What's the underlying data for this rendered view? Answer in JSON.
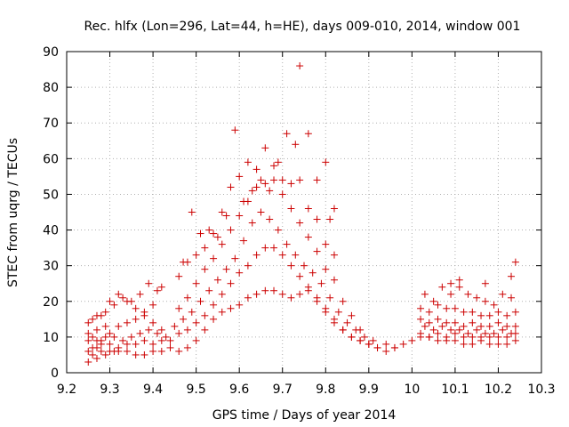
{
  "chart_data": {
    "type": "scatter",
    "title": "Rec. hlfx (Lon=296, Lat=44, h=HE), days 009-010, 2014, window 001",
    "xlabel": "GPS time / Days of year 2014",
    "ylabel": "STEC from uqrg / TECUs",
    "xlim": [
      9.2,
      10.3
    ],
    "ylim": [
      0,
      90
    ],
    "xticks": [
      "9.2",
      "9.3",
      "9.4",
      "9.5",
      "9.6",
      "9.7",
      "9.8",
      "9.9",
      "10",
      "10.1",
      "10.2",
      "10.3"
    ],
    "yticks": [
      "0",
      "10",
      "20",
      "30",
      "40",
      "50",
      "60",
      "70",
      "80",
      "90"
    ],
    "grid": true,
    "marker": "+",
    "color": "#cc0000",
    "series": [
      {
        "name": "STEC",
        "points": [
          [
            9.25,
            3
          ],
          [
            9.26,
            5
          ],
          [
            9.27,
            4
          ],
          [
            9.28,
            6
          ],
          [
            9.29,
            5
          ],
          [
            9.3,
            6
          ],
          [
            9.31,
            6
          ],
          [
            9.32,
            6
          ],
          [
            9.34,
            6
          ],
          [
            9.36,
            5
          ],
          [
            9.38,
            5
          ],
          [
            9.4,
            6
          ],
          [
            9.42,
            6
          ],
          [
            9.44,
            7
          ],
          [
            9.46,
            6
          ],
          [
            9.48,
            7
          ],
          [
            9.5,
            9
          ],
          [
            9.52,
            12
          ],
          [
            9.54,
            15
          ],
          [
            9.56,
            17
          ],
          [
            9.58,
            18
          ],
          [
            9.6,
            19
          ],
          [
            9.62,
            21
          ],
          [
            9.64,
            22
          ],
          [
            9.66,
            23
          ],
          [
            9.68,
            23
          ],
          [
            9.7,
            22
          ],
          [
            9.72,
            21
          ],
          [
            9.74,
            22
          ],
          [
            9.76,
            23
          ],
          [
            9.78,
            20
          ],
          [
            9.8,
            17
          ],
          [
            9.82,
            15
          ],
          [
            9.84,
            12
          ],
          [
            9.86,
            10
          ],
          [
            9.88,
            9
          ],
          [
            9.9,
            8
          ],
          [
            9.92,
            7
          ],
          [
            9.94,
            6
          ],
          [
            9.96,
            7
          ],
          [
            9.98,
            8
          ],
          [
            10.0,
            9
          ],
          [
            10.02,
            10
          ],
          [
            10.04,
            10
          ],
          [
            10.06,
            9
          ],
          [
            10.08,
            9
          ],
          [
            10.1,
            9
          ],
          [
            10.12,
            8
          ],
          [
            10.14,
            8
          ],
          [
            10.16,
            9
          ],
          [
            10.18,
            8
          ],
          [
            10.2,
            8
          ],
          [
            10.22,
            8
          ],
          [
            10.24,
            9
          ],
          [
            9.25,
            6
          ],
          [
            9.26,
            7
          ],
          [
            9.27,
            7
          ],
          [
            9.28,
            8
          ],
          [
            9.3,
            8
          ],
          [
            9.32,
            7
          ],
          [
            9.34,
            8
          ],
          [
            9.36,
            8
          ],
          [
            9.38,
            9
          ],
          [
            9.4,
            8
          ],
          [
            9.42,
            9
          ],
          [
            9.44,
            9
          ],
          [
            9.46,
            11
          ],
          [
            9.48,
            12
          ],
          [
            9.5,
            14
          ],
          [
            9.52,
            16
          ],
          [
            9.54,
            19
          ],
          [
            9.56,
            22
          ],
          [
            9.58,
            25
          ],
          [
            9.6,
            28
          ],
          [
            9.62,
            30
          ],
          [
            9.64,
            33
          ],
          [
            9.66,
            35
          ],
          [
            9.68,
            35
          ],
          [
            9.7,
            33
          ],
          [
            9.72,
            30
          ],
          [
            9.74,
            27
          ],
          [
            9.76,
            24
          ],
          [
            9.78,
            21
          ],
          [
            9.8,
            18
          ],
          [
            9.82,
            14
          ],
          [
            9.84,
            12
          ],
          [
            9.86,
            10
          ],
          [
            9.88,
            9
          ],
          [
            9.9,
            8
          ],
          [
            9.92,
            7
          ],
          [
            9.94,
            8
          ],
          [
            9.96,
            7
          ],
          [
            10.02,
            11
          ],
          [
            10.04,
            10
          ],
          [
            10.06,
            11
          ],
          [
            10.08,
            10
          ],
          [
            10.1,
            11
          ],
          [
            10.12,
            10
          ],
          [
            10.14,
            10
          ],
          [
            10.16,
            10
          ],
          [
            10.18,
            10
          ],
          [
            10.2,
            10
          ],
          [
            10.22,
            10
          ],
          [
            10.24,
            11
          ],
          [
            9.25,
            9
          ],
          [
            9.26,
            10
          ],
          [
            9.27,
            9
          ],
          [
            9.28,
            9
          ],
          [
            9.29,
            10
          ],
          [
            9.31,
            10
          ],
          [
            9.33,
            9
          ],
          [
            9.35,
            10
          ],
          [
            9.37,
            11
          ],
          [
            9.39,
            12
          ],
          [
            9.41,
            11
          ],
          [
            9.43,
            10
          ],
          [
            9.45,
            13
          ],
          [
            9.47,
            15
          ],
          [
            9.49,
            17
          ],
          [
            9.51,
            20
          ],
          [
            9.53,
            23
          ],
          [
            9.55,
            26
          ],
          [
            9.57,
            29
          ],
          [
            9.59,
            32
          ],
          [
            9.61,
            37
          ],
          [
            9.63,
            42
          ],
          [
            9.65,
            45
          ],
          [
            9.67,
            43
          ],
          [
            9.69,
            40
          ],
          [
            9.71,
            36
          ],
          [
            9.73,
            33
          ],
          [
            9.75,
            30
          ],
          [
            9.77,
            28
          ],
          [
            9.79,
            25
          ],
          [
            9.81,
            21
          ],
          [
            9.83,
            17
          ],
          [
            9.85,
            14
          ],
          [
            9.87,
            12
          ],
          [
            9.89,
            10
          ],
          [
            9.91,
            9
          ],
          [
            10.03,
            13
          ],
          [
            10.05,
            12
          ],
          [
            10.07,
            13
          ],
          [
            10.09,
            12
          ],
          [
            10.11,
            12
          ],
          [
            10.13,
            11
          ],
          [
            10.15,
            12
          ],
          [
            10.17,
            11
          ],
          [
            10.19,
            11
          ],
          [
            10.21,
            12
          ],
          [
            10.23,
            11
          ],
          [
            9.25,
            11
          ],
          [
            9.27,
            12
          ],
          [
            9.29,
            13
          ],
          [
            9.3,
            11
          ],
          [
            9.32,
            13
          ],
          [
            9.34,
            14
          ],
          [
            9.36,
            15
          ],
          [
            9.38,
            16
          ],
          [
            9.4,
            14
          ],
          [
            9.42,
            12
          ],
          [
            9.46,
            18
          ],
          [
            9.48,
            21
          ],
          [
            9.5,
            25
          ],
          [
            9.52,
            29
          ],
          [
            9.54,
            32
          ],
          [
            9.56,
            36
          ],
          [
            9.58,
            40
          ],
          [
            9.6,
            44
          ],
          [
            9.62,
            48
          ],
          [
            9.64,
            52
          ],
          [
            9.66,
            53
          ],
          [
            9.68,
            54
          ],
          [
            9.7,
            50
          ],
          [
            9.72,
            46
          ],
          [
            9.74,
            42
          ],
          [
            9.76,
            38
          ],
          [
            9.78,
            34
          ],
          [
            9.8,
            29
          ],
          [
            9.82,
            26
          ],
          [
            9.84,
            20
          ],
          [
            9.86,
            16
          ],
          [
            9.88,
            12
          ],
          [
            10.02,
            15
          ],
          [
            10.04,
            14
          ],
          [
            10.06,
            15
          ],
          [
            10.08,
            14
          ],
          [
            10.1,
            14
          ],
          [
            10.12,
            13
          ],
          [
            10.14,
            14
          ],
          [
            10.16,
            13
          ],
          [
            10.18,
            13
          ],
          [
            10.2,
            14
          ],
          [
            10.22,
            13
          ],
          [
            10.24,
            13
          ],
          [
            9.25,
            14
          ],
          [
            9.27,
            16
          ],
          [
            9.29,
            17
          ],
          [
            9.31,
            19
          ],
          [
            9.33,
            21
          ],
          [
            9.35,
            20
          ],
          [
            9.37,
            22
          ],
          [
            9.39,
            25
          ],
          [
            9.41,
            23
          ],
          [
            9.46,
            27
          ],
          [
            9.48,
            31
          ],
          [
            9.5,
            33
          ],
          [
            9.52,
            35
          ],
          [
            9.54,
            39
          ],
          [
            9.56,
            45
          ],
          [
            9.58,
            52
          ],
          [
            9.6,
            55
          ],
          [
            9.62,
            59
          ],
          [
            9.64,
            57
          ],
          [
            9.66,
            63
          ],
          [
            9.68,
            58
          ],
          [
            9.7,
            54
          ],
          [
            9.72,
            53
          ],
          [
            9.74,
            54
          ],
          [
            9.76,
            46
          ],
          [
            9.78,
            43
          ],
          [
            9.8,
            36
          ],
          [
            9.82,
            33
          ],
          [
            10.02,
            18
          ],
          [
            10.04,
            17
          ],
          [
            10.06,
            19
          ],
          [
            10.08,
            18
          ],
          [
            10.1,
            18
          ],
          [
            10.12,
            17
          ],
          [
            10.14,
            17
          ],
          [
            10.16,
            16
          ],
          [
            10.18,
            16
          ],
          [
            10.2,
            17
          ],
          [
            10.22,
            16
          ],
          [
            10.24,
            17
          ],
          [
            9.26,
            15
          ],
          [
            9.28,
            16
          ],
          [
            9.3,
            20
          ],
          [
            9.32,
            22
          ],
          [
            9.34,
            20
          ],
          [
            9.36,
            18
          ],
          [
            9.38,
            17
          ],
          [
            9.4,
            19
          ],
          [
            9.42,
            24
          ],
          [
            9.47,
            31
          ],
          [
            9.49,
            45
          ],
          [
            9.51,
            39
          ],
          [
            9.53,
            40
          ],
          [
            9.55,
            38
          ],
          [
            9.57,
            44
          ],
          [
            9.59,
            68
          ],
          [
            9.61,
            48
          ],
          [
            9.63,
            51
          ],
          [
            9.65,
            54
          ],
          [
            9.67,
            51
          ],
          [
            9.69,
            59
          ],
          [
            9.71,
            67
          ],
          [
            9.73,
            64
          ],
          [
            9.74,
            86
          ],
          [
            9.76,
            67
          ],
          [
            9.78,
            54
          ],
          [
            9.8,
            59
          ],
          [
            9.81,
            43
          ],
          [
            9.82,
            46
          ],
          [
            10.03,
            22
          ],
          [
            10.05,
            20
          ],
          [
            10.07,
            24
          ],
          [
            10.09,
            22
          ],
          [
            10.11,
            24
          ],
          [
            10.13,
            22
          ],
          [
            10.15,
            21
          ],
          [
            10.17,
            20
          ],
          [
            10.19,
            19
          ],
          [
            10.21,
            22
          ],
          [
            10.23,
            21
          ],
          [
            10.24,
            31
          ],
          [
            10.23,
            27
          ],
          [
            10.11,
            26
          ],
          [
            10.09,
            25
          ],
          [
            10.17,
            25
          ]
        ]
      }
    ]
  }
}
